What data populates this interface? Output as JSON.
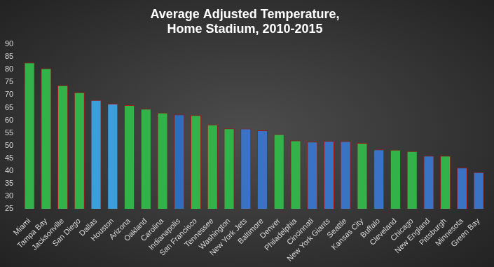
{
  "chart_data": {
    "type": "bar",
    "title": [
      "Average Adjusted Temperature,",
      "Home Stadium, 2010-2015"
    ],
    "categories": [
      "Miami",
      "Tampa Bay",
      "Jacksonville",
      "San Diego",
      "Dallas",
      "Houston",
      "Arizona",
      "Oakland",
      "Carolina",
      "Indianapolis",
      "San Francisco",
      "Tennessee",
      "Washington",
      "New York Jets",
      "Baltimore",
      "Denver",
      "Philadelphia",
      "Cincinnati",
      "New York Giants",
      "Seattle",
      "Kansas City",
      "Buffalo",
      "Cleveland",
      "Chicago",
      "New England",
      "Pittsburgh",
      "Minnesota",
      "Green Bay"
    ],
    "values": [
      82.8,
      80.5,
      73.8,
      71,
      68,
      66.5,
      66,
      64.5,
      63,
      62.3,
      62,
      58.3,
      56.8,
      56.7,
      56,
      54.5,
      52,
      51.5,
      51.8,
      51.7,
      51,
      48.5,
      48.3,
      47.8,
      46,
      46,
      41.3,
      39.5
    ],
    "colors": [
      "#33b24a",
      "#33b24a",
      "#33b24a",
      "#33b24a",
      "#3aa0dc",
      "#3aa0dc",
      "#33b24a",
      "#33b24a",
      "#33b24a",
      "#2e6fb8",
      "#33b24a",
      "#33b24a",
      "#33b24a",
      "#3b73c4",
      "#3b73c4",
      "#33b24a",
      "#33b24a",
      "#3b73c4",
      "#3b73c4",
      "#3b73c4",
      "#33b24a",
      "#3b73c4",
      "#33b24a",
      "#33b24a",
      "#3b73c4",
      "#33b24a",
      "#3b73c4",
      "#3b73c4"
    ],
    "ylim": [
      25,
      90
    ],
    "yticks": [
      25,
      30,
      35,
      40,
      45,
      50,
      55,
      60,
      65,
      70,
      75,
      80,
      85,
      90
    ],
    "grid": false
  }
}
